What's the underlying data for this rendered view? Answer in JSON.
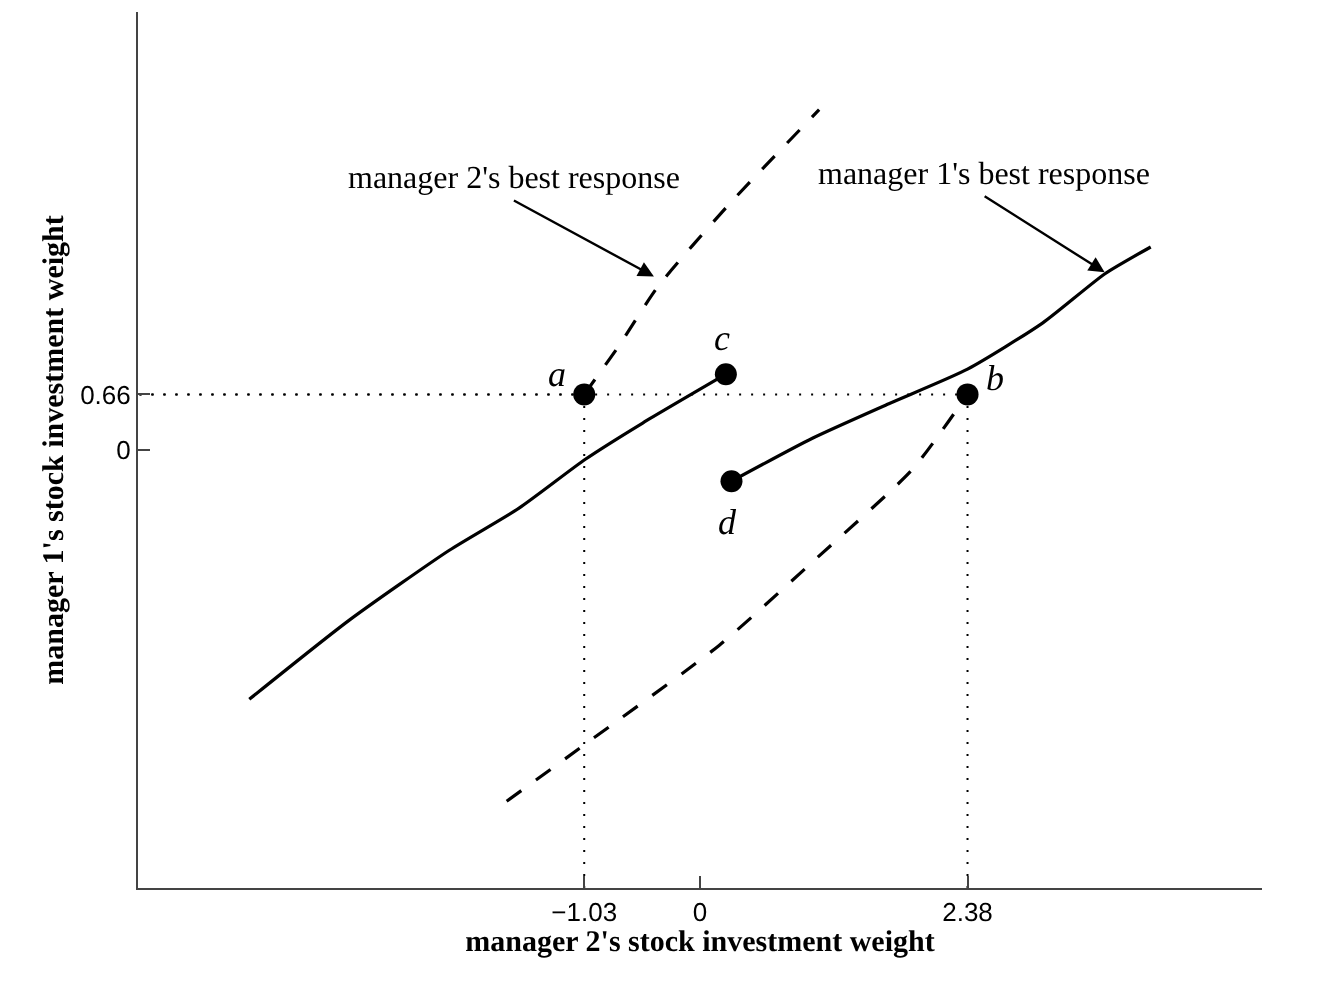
{
  "chart_data": {
    "type": "line",
    "xlabel": "manager 2's stock investment weight",
    "ylabel": "manager 1's stock investment weight",
    "xlim": [
      -5,
      5
    ],
    "ylim": [
      -5.2,
      5.2
    ],
    "xticks": [
      -1.03,
      0,
      2.38
    ],
    "yticks": [
      0.66,
      0
    ],
    "series": [
      {
        "color": "#000000",
        "line_style": "solid",
        "marker": "none",
        "x": [
          -4.01,
          -3.12,
          -2.23,
          -1.61,
          -1.02,
          -0.51,
          0.23
        ],
        "values": [
          -2.96,
          -2.02,
          -1.19,
          -0.69,
          -0.11,
          0.32,
          0.9
        ]
      },
      {
        "color": "#000000",
        "line_style": "solid",
        "marker": "none",
        "x": [
          0.28,
          1.0,
          1.68,
          2.38,
          3.05,
          3.6,
          4.01
        ],
        "values": [
          -0.37,
          0.14,
          0.55,
          0.96,
          1.51,
          2.09,
          2.41
        ]
      },
      {
        "color": "#000000",
        "line_style": "dashed",
        "marker": "none",
        "x": [
          -1.03,
          -0.72,
          -0.38,
          0.24,
          1.06
        ],
        "values": [
          0.66,
          1.24,
          1.93,
          2.89,
          4.04
        ]
      },
      {
        "color": "#000000",
        "line_style": "dashed",
        "marker": "none",
        "x": [
          -1.72,
          -1.06,
          0.17,
          1.0,
          1.89,
          2.38
        ],
        "values": [
          -4.17,
          -3.53,
          -2.32,
          -1.33,
          -0.23,
          0.66
        ]
      },
      {
        "color": "#000000",
        "line_style": "dotted",
        "marker": "none",
        "x": [
          -1.03,
          -1.03,
          -5
        ],
        "values": [
          -5.2,
          0.66,
          0.66
        ]
      },
      {
        "color": "#000000",
        "line_style": "dotted",
        "marker": "none",
        "x": [
          2.38,
          2.38,
          -5
        ],
        "values": [
          -5.2,
          0.66,
          0.66
        ]
      },
      {
        "type": "scatter",
        "color": "#000000",
        "marker": "circle",
        "x": [
          -1.03,
          2.38,
          0.23,
          0.28
        ],
        "values": [
          0.66,
          0.66,
          0.9,
          -0.37
        ]
      }
    ],
    "annotations": [
      {
        "text": "manager 2's best response",
        "x": -0.41,
        "y": 2.06
      },
      {
        "text": "manager 1's best response",
        "x": 3.6,
        "y": 2.11
      },
      {
        "text": "a",
        "x": -1.03,
        "y": 0.66
      },
      {
        "text": "b",
        "x": 2.38,
        "y": 0.66
      },
      {
        "text": "c",
        "x": 0.23,
        "y": 0.9
      },
      {
        "text": "d",
        "x": 0.28,
        "y": -0.37
      }
    ]
  }
}
